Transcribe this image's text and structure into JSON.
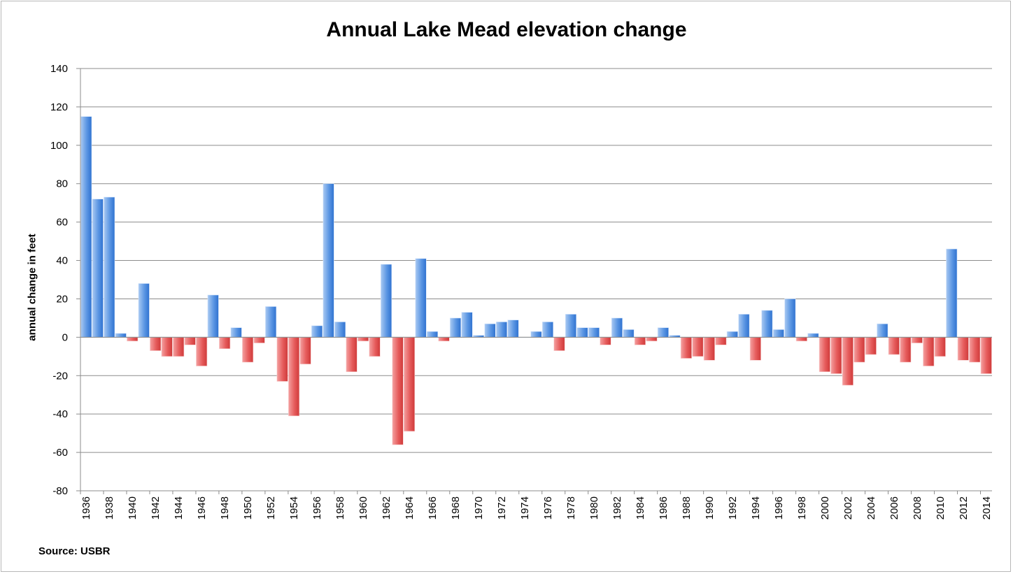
{
  "chart_data": {
    "type": "bar",
    "title": "Annual Lake Mead elevation change",
    "ylabel": "annual change in feet",
    "xlabel": "",
    "ylim": [
      -80,
      140
    ],
    "yticks": [
      140,
      120,
      100,
      80,
      60,
      40,
      20,
      0,
      -20,
      -40,
      -60,
      -80
    ],
    "grid": true,
    "legend": "none",
    "colors": {
      "positive": "#4f8fe0",
      "negative": "#e05555",
      "grid": "#8c8c8c"
    },
    "xtick_labels": [
      "1936",
      "1938",
      "1940",
      "1942",
      "1944",
      "1946",
      "1948",
      "1950",
      "1952",
      "1954",
      "1956",
      "1958",
      "1960",
      "1962",
      "1964",
      "1966",
      "1968",
      "1970",
      "1972",
      "1974",
      "1976",
      "1978",
      "1980",
      "1982",
      "1984",
      "1986",
      "1988",
      "1990",
      "1992",
      "1994",
      "1996",
      "1998",
      "2000",
      "2002",
      "2004",
      "2006",
      "2008",
      "2010",
      "2012",
      "2014"
    ],
    "categories": [
      1936,
      1937,
      1938,
      1939,
      1940,
      1941,
      1942,
      1943,
      1944,
      1945,
      1946,
      1947,
      1948,
      1949,
      1950,
      1951,
      1952,
      1953,
      1954,
      1955,
      1956,
      1957,
      1958,
      1959,
      1960,
      1961,
      1962,
      1963,
      1964,
      1965,
      1966,
      1967,
      1968,
      1969,
      1970,
      1971,
      1972,
      1973,
      1974,
      1975,
      1976,
      1977,
      1978,
      1979,
      1980,
      1981,
      1982,
      1983,
      1984,
      1985,
      1986,
      1987,
      1988,
      1989,
      1990,
      1991,
      1992,
      1993,
      1994,
      1995,
      1996,
      1997,
      1998,
      1999,
      2000,
      2001,
      2002,
      2003,
      2004,
      2005,
      2006,
      2007,
      2008,
      2009,
      2010,
      2011,
      2012,
      2013,
      2014
    ],
    "values": [
      115,
      72,
      73,
      2,
      -2,
      28,
      -7,
      -10,
      -10,
      -4,
      -15,
      22,
      -6,
      5,
      -13,
      -3,
      16,
      -23,
      -41,
      -14,
      6,
      80,
      8,
      -18,
      -2,
      -10,
      38,
      -56,
      -49,
      41,
      3,
      -2,
      10,
      13,
      1,
      7,
      8,
      9,
      0,
      3,
      8,
      -7,
      12,
      5,
      5,
      -4,
      10,
      4,
      -4,
      -2,
      5,
      1,
      -11,
      -10,
      -12,
      -4,
      3,
      12,
      -12,
      14,
      4,
      20,
      -2,
      2,
      -18,
      -19,
      -25,
      -13,
      -9,
      7,
      -9,
      -13,
      -3,
      -15,
      -10,
      46,
      -12,
      -13,
      -19
    ]
  },
  "footer": {
    "source": "Source: USBR"
  }
}
